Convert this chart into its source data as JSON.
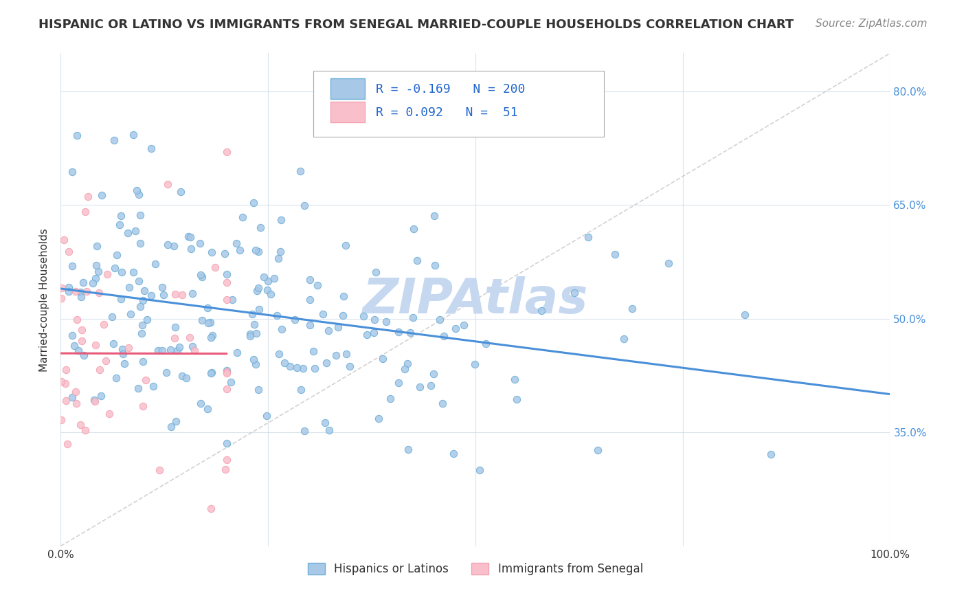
{
  "title": "HISPANIC OR LATINO VS IMMIGRANTS FROM SENEGAL MARRIED-COUPLE HOUSEHOLDS CORRELATION CHART",
  "source": "Source: ZipAtlas.com",
  "ylabel": "Married-couple Households",
  "xmin": 0.0,
  "xmax": 1.0,
  "ymin": 0.2,
  "ymax": 0.85,
  "yticks": [
    0.35,
    0.5,
    0.65,
    0.8
  ],
  "ytick_labels": [
    "35.0%",
    "50.0%",
    "65.0%",
    "80.0%"
  ],
  "blue_R": -0.169,
  "blue_N": 200,
  "pink_R": 0.092,
  "pink_N": 51,
  "blue_color": "#6baed6",
  "blue_scatter_color": "#a8c8e8",
  "pink_color": "#f4a0b0",
  "pink_scatter_color": "#f9c0cc",
  "blue_line_color": "#4a90d9",
  "pink_line_color": "#e85a7a",
  "diagonal_color": "#c0c0c0",
  "watermark_color": "#c5d8f0",
  "legend_fontsize": 13,
  "title_fontsize": 13,
  "axis_label_fontsize": 11,
  "tick_fontsize": 11,
  "source_fontsize": 11,
  "legend_value_color": "#2266cc",
  "background_color": "#ffffff",
  "grid_color": "#d0dce8",
  "legend_labels": [
    "Hispanics or Latinos",
    "Immigrants from Senegal"
  ]
}
